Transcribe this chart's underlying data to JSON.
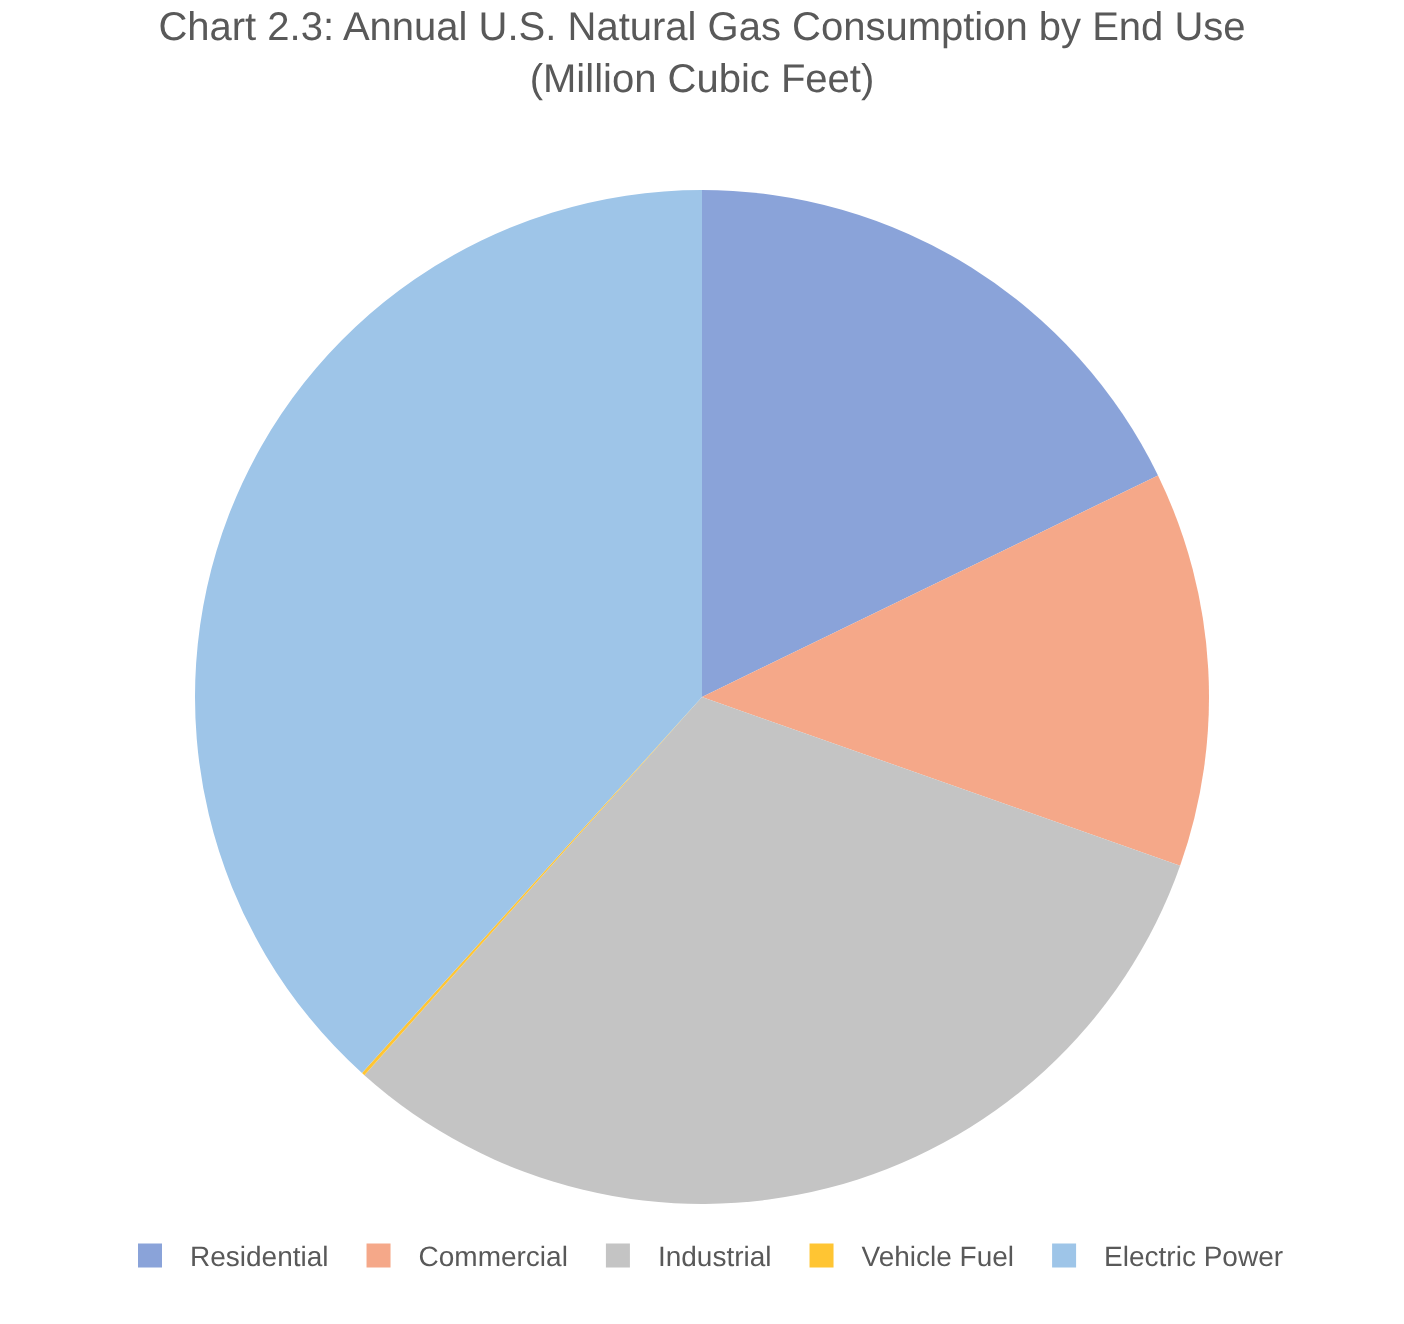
{
  "chart_data": {
    "type": "pie",
    "title": "Chart 2.3: Annual U.S. Natural Gas Consumption by End Use\n(Million Cubic Feet)",
    "categories": [
      "Residential",
      "Commercial",
      "Industrial",
      "Vehicle Fuel",
      "Electric Power"
    ],
    "values": [
      17.8,
      12.6,
      31.2,
      0.1,
      38.3
    ],
    "colors": [
      "#8aa3d9",
      "#f5a889",
      "#c4c4c4",
      "#ffc533",
      "#9ec5e8"
    ],
    "legend": "bottom"
  }
}
